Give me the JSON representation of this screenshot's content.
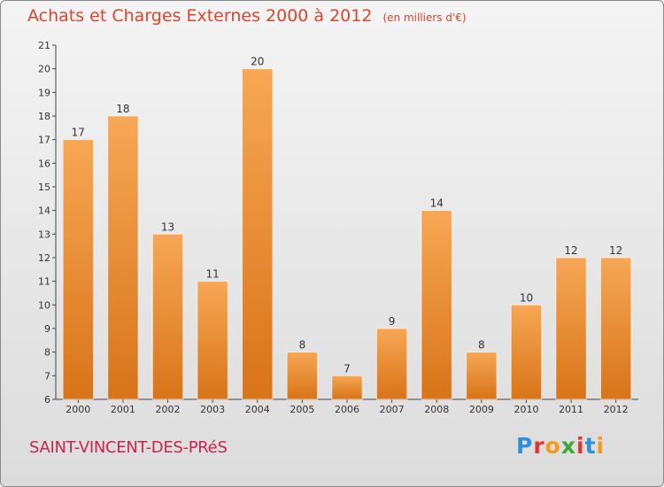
{
  "header": {
    "title": "Achats et Charges Externes 2000 à 2012",
    "unit": "(en milliers d'€)"
  },
  "footer": {
    "place": "SAINT-VINCENT-DES-PRéS",
    "logo": [
      "P",
      "r",
      "o",
      "x",
      "i",
      "t",
      "i"
    ]
  },
  "colors": {
    "title": "#d8462e",
    "place": "#c8244e",
    "bar_light": "#f7a755",
    "bar_dark": "#d87419",
    "logo": [
      "#2f8fd8",
      "#e3342f",
      "#f29a1a",
      "#38a838",
      "#e3342f",
      "#2f8fd8",
      "#f29a1a"
    ]
  },
  "chart_data": {
    "type": "bar",
    "categories": [
      "2000",
      "2001",
      "2002",
      "2003",
      "2004",
      "2005",
      "2006",
      "2007",
      "2008",
      "2009",
      "2010",
      "2011",
      "2012"
    ],
    "values": [
      17,
      18,
      13,
      11,
      20,
      8,
      7,
      9,
      14,
      8,
      10,
      12,
      12
    ],
    "ylim": [
      6,
      21
    ],
    "yticks": [
      6,
      7,
      8,
      9,
      10,
      11,
      12,
      13,
      14,
      15,
      16,
      17,
      18,
      19,
      20,
      21
    ],
    "grid": false,
    "legend": "none",
    "data_labels": true
  }
}
